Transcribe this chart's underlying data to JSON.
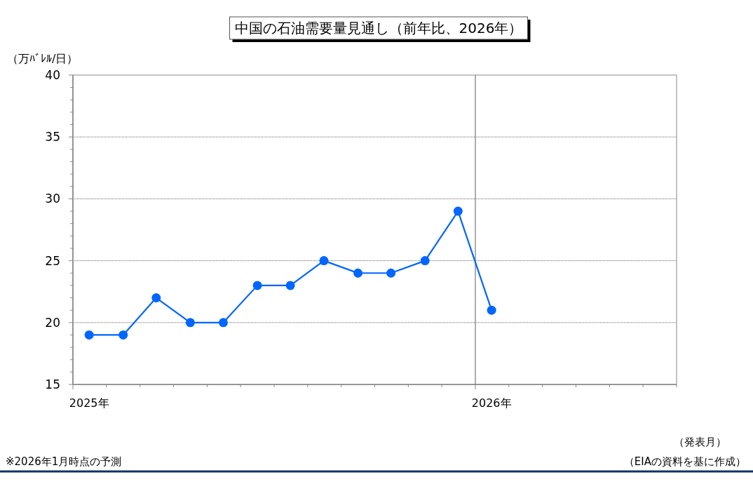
{
  "chart_data": {
    "type": "line",
    "title": "中国の石油需要量見通し（前年比、2026年）",
    "ylabel": "（万ﾊﾞﾚﾙ/日）",
    "xlabel": "（発表月）",
    "x": [
      "2025-01-16",
      "2025-02-15",
      "2025-03-16",
      "2025-04-16",
      "2025-05-16",
      "2025-06-16",
      "2025-07-16",
      "2025-08-16",
      "2025-09-16",
      "2025-10-16",
      "2025-11-16",
      "2025-12-16",
      "2026-01-16"
    ],
    "series": [
      {
        "color": "#0066ff",
        "values": [
          19,
          19,
          22,
          20,
          20,
          23,
          23,
          25,
          24,
          24,
          25,
          29,
          21
        ]
      }
    ],
    "xlim": [
      "2025-01-01",
      "2026-07-01"
    ],
    "xticks": [
      {
        "value": "2025-01-01",
        "label": null
      },
      {
        "value": "2025-01-16",
        "label": "2025年"
      },
      {
        "value": "2025-02-01",
        "label": null
      },
      {
        "value": "2025-03-01",
        "label": null
      },
      {
        "value": "2025-04-01",
        "label": null
      },
      {
        "value": "2025-05-01",
        "label": null
      },
      {
        "value": "2025-06-01",
        "label": null
      },
      {
        "value": "2025-07-01",
        "label": null
      },
      {
        "value": "2025-08-01",
        "label": null
      },
      {
        "value": "2025-09-01",
        "label": null
      },
      {
        "value": "2025-10-01",
        "label": null
      },
      {
        "value": "2025-11-01",
        "label": null
      },
      {
        "value": "2025-12-01",
        "label": null
      },
      {
        "value": "2026-01-01",
        "label": null
      },
      {
        "value": "2026-01-16",
        "label": "2026年"
      },
      {
        "value": "2026-02-01",
        "label": null
      },
      {
        "value": "2026-03-01",
        "label": null
      },
      {
        "value": "2026-04-01",
        "label": null
      },
      {
        "value": "2026-05-01",
        "label": null
      },
      {
        "value": "2026-06-01",
        "label": null
      },
      {
        "value": "2026-07-01",
        "label": null
      }
    ],
    "ylim": [
      15,
      40
    ],
    "yticks": [
      15,
      {
        "value": 16,
        "label": null
      },
      {
        "value": 17,
        "label": null
      },
      {
        "value": 18,
        "label": null
      },
      {
        "value": 19,
        "label": null
      },
      20,
      {
        "value": 21,
        "label": null
      },
      {
        "value": 22,
        "label": null
      },
      {
        "value": 23,
        "label": null
      },
      {
        "value": 24,
        "label": null
      },
      25,
      {
        "value": 26,
        "label": null
      },
      {
        "value": 27,
        "label": null
      },
      {
        "value": 28,
        "label": null
      },
      {
        "value": 29,
        "label": null
      },
      30,
      {
        "value": 31,
        "label": null
      },
      {
        "value": 32,
        "label": null
      },
      {
        "value": 33,
        "label": null
      },
      {
        "value": 34,
        "label": null
      },
      35,
      {
        "value": 36,
        "label": null
      },
      {
        "value": 37,
        "label": null
      },
      {
        "value": 38,
        "label": null
      },
      {
        "value": 39,
        "label": null
      },
      40
    ],
    "grid": "y",
    "marker": "circle",
    "line_style": "solid",
    "ref_lines": [
      {
        "axis": "x",
        "value": "2026-01-01",
        "color": "#808080"
      }
    ],
    "annotations": [
      "※2026年1月時点の予測",
      "（EIAの資料を基に作成）"
    ]
  }
}
